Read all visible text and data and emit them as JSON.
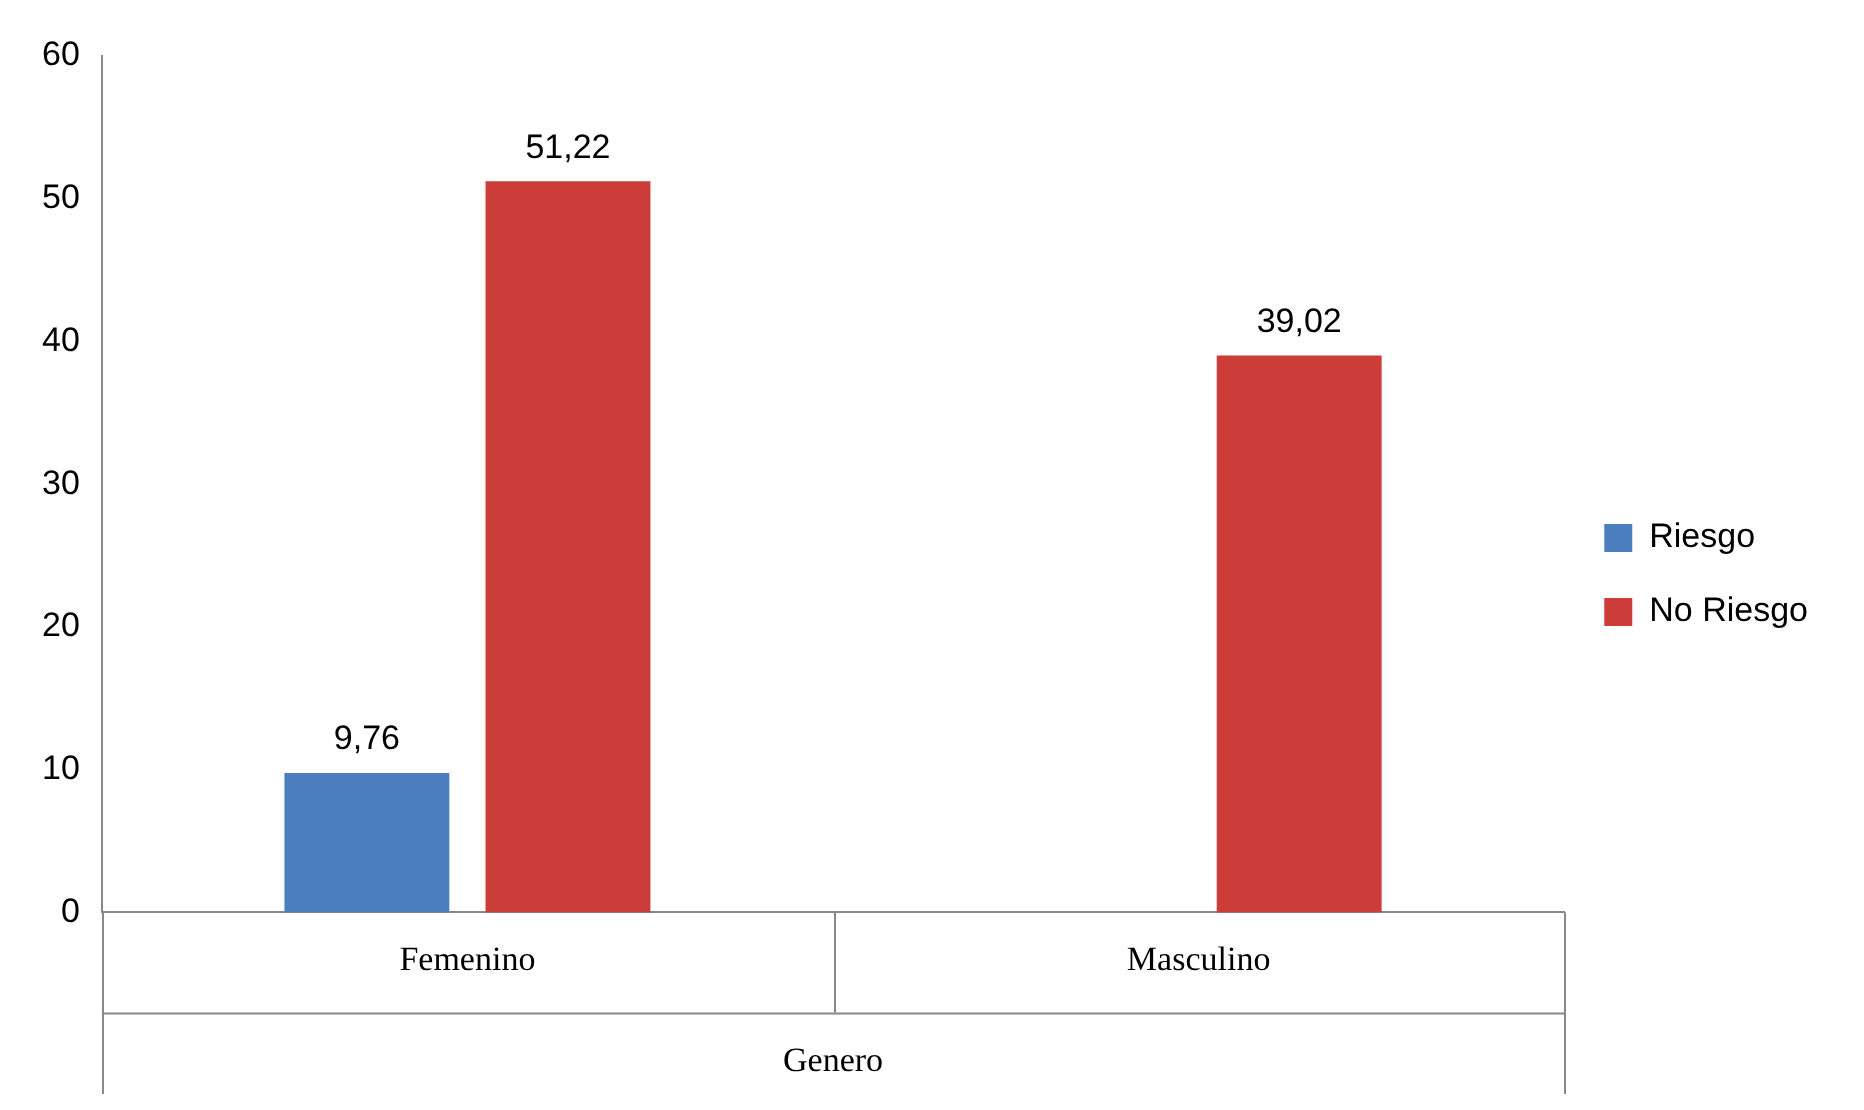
{
  "chart_data": {
    "type": "bar",
    "categories": [
      "Femenino",
      "Masculino"
    ],
    "xlabel": "Genero",
    "series": [
      {
        "name": "Riesgo",
        "color": "#4a7ebf",
        "values": [
          9.76,
          null
        ],
        "value_labels": [
          "9,76",
          null
        ]
      },
      {
        "name": "No Riesgo",
        "color": "#cc3d3a",
        "values": [
          51.22,
          39.02
        ],
        "value_labels": [
          "51,22",
          "39,02"
        ]
      }
    ],
    "ylim": [
      0,
      60
    ],
    "yticks": [
      0,
      10,
      20,
      30,
      40,
      50,
      60
    ],
    "grid": false,
    "legend": "right"
  }
}
